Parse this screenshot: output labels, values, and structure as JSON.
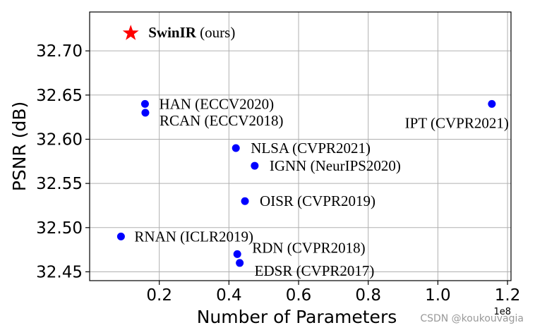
{
  "chart_data": {
    "type": "scatter",
    "title": "",
    "xlabel": "Number of Parameters",
    "ylabel": "PSNR (dB)",
    "x_exponent_label": "1e8",
    "xlim": [
      0.0,
      1.21
    ],
    "ylim": [
      32.44,
      32.744
    ],
    "xticks": [
      {
        "value": 0.2,
        "label": "0.2"
      },
      {
        "value": 0.4,
        "label": "0.4"
      },
      {
        "value": 0.6,
        "label": "0.6"
      },
      {
        "value": 0.8,
        "label": "0.8"
      },
      {
        "value": 1.0,
        "label": "1.0"
      },
      {
        "value": 1.2,
        "label": "1.2"
      }
    ],
    "yticks": [
      {
        "value": 32.45,
        "label": "32.45"
      },
      {
        "value": 32.5,
        "label": "32.50"
      },
      {
        "value": 32.55,
        "label": "32.55"
      },
      {
        "value": 32.6,
        "label": "32.60"
      },
      {
        "value": 32.65,
        "label": "32.65"
      },
      {
        "value": 32.7,
        "label": "32.70"
      }
    ],
    "grid": true,
    "points": [
      {
        "key": "swinir",
        "x": 0.118,
        "y": 32.72,
        "marker": "star",
        "color": "#ff0000",
        "label_bold": "SwinIR",
        "label": " (ours)",
        "label_pos": "right"
      },
      {
        "key": "han",
        "x": 0.159,
        "y": 32.64,
        "marker": "circle",
        "color": "#0000ff",
        "label": "HAN (ECCV2020)",
        "label_pos": "right"
      },
      {
        "key": "rcan",
        "x": 0.16,
        "y": 32.63,
        "marker": "circle",
        "color": "#0000ff",
        "label": "RCAN (ECCV2018)",
        "label_pos": "right-below"
      },
      {
        "key": "ipt",
        "x": 1.155,
        "y": 32.64,
        "marker": "circle",
        "color": "#0000ff",
        "label": "IPT (CVPR2021)",
        "label_pos": "below-left"
      },
      {
        "key": "nlsa",
        "x": 0.42,
        "y": 32.59,
        "marker": "circle",
        "color": "#0000ff",
        "label": "NLSA (CVPR2021)",
        "label_pos": "right"
      },
      {
        "key": "ignn",
        "x": 0.474,
        "y": 32.57,
        "marker": "circle",
        "color": "#0000ff",
        "label": "IGNN (NeurIPS2020)",
        "label_pos": "right"
      },
      {
        "key": "oisr",
        "x": 0.446,
        "y": 32.53,
        "marker": "circle",
        "color": "#0000ff",
        "label": "OISR (CVPR2019)",
        "label_pos": "right"
      },
      {
        "key": "rnan",
        "x": 0.09,
        "y": 32.49,
        "marker": "circle",
        "color": "#0000ff",
        "label": "RNAN (ICLR2019)",
        "label_pos": "right"
      },
      {
        "key": "rdn",
        "x": 0.424,
        "y": 32.47,
        "marker": "circle",
        "color": "#0000ff",
        "label": "RDN (CVPR2018)",
        "label_pos": "right-above"
      },
      {
        "key": "edsr",
        "x": 0.431,
        "y": 32.46,
        "marker": "circle",
        "color": "#0000ff",
        "label": "EDSR (CVPR2017)",
        "label_pos": "right-below"
      }
    ]
  },
  "watermark": "CSDN @koukouvagia"
}
